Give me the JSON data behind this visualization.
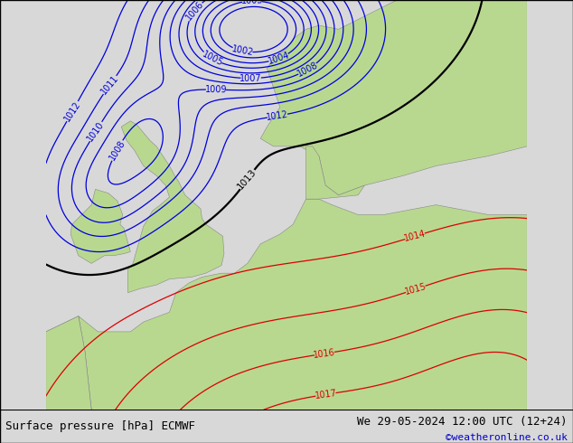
{
  "title_left": "Surface pressure [hPa] ECMWF",
  "title_right": "We 29-05-2024 12:00 UTC (12+24)",
  "credit": "©weatheronline.co.uk",
  "bg_color": "#d8d8d8",
  "land_color": "#b8d890",
  "sea_color": "#d8d8d8",
  "isobar_blue_color": "#0000dd",
  "isobar_black_color": "#000000",
  "isobar_red_color": "#dd0000",
  "coastline_color": "#888888",
  "label_fontsize": 7.0,
  "title_fontsize": 9,
  "credit_fontsize": 8,
  "credit_color": "#0000cc",
  "bottom_bar_color": "#ffffff"
}
